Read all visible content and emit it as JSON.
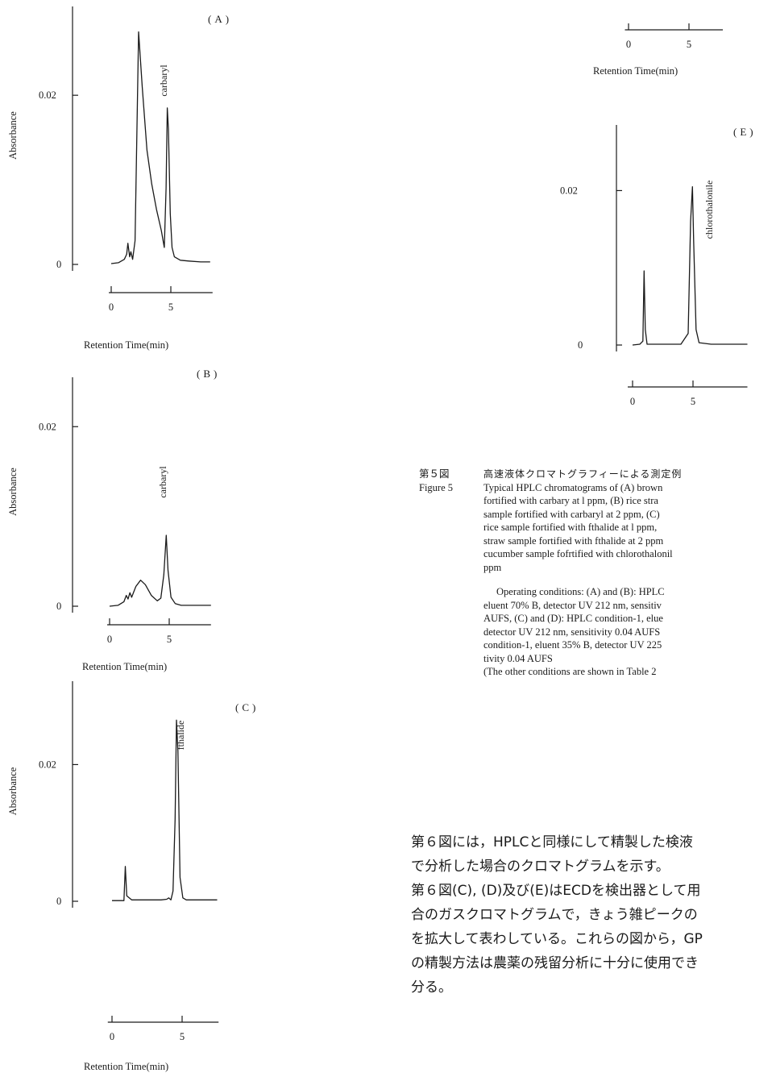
{
  "chart_data": [
    {
      "type": "line",
      "panel_label": "(A)",
      "ylabel": "Absorbance",
      "xlabel": "Retention  Time(min)",
      "yticks": [
        "0",
        "0.02"
      ],
      "xticks": [
        "0",
        "5"
      ],
      "peak_label": "carbaryl",
      "x": [
        0,
        0.6,
        1.1,
        1.3,
        1.4,
        1.55,
        1.65,
        1.8,
        2.0,
        2.3,
        2.6,
        3.0,
        3.4,
        3.8,
        4.2,
        4.45,
        4.6,
        4.7,
        4.8,
        4.95,
        5.1,
        5.3,
        5.8,
        6.5,
        7.5,
        8.3
      ],
      "y": [
        0.0001,
        0.0002,
        0.0006,
        0.0012,
        0.0025,
        0.0009,
        0.0015,
        0.0006,
        0.0028,
        0.0275,
        0.021,
        0.0135,
        0.0095,
        0.0065,
        0.004,
        0.002,
        0.009,
        0.0185,
        0.016,
        0.006,
        0.002,
        0.0009,
        0.0005,
        0.0004,
        0.0003,
        0.0003
      ],
      "ylim": [
        0,
        0.0305
      ],
      "xlim": [
        -0.2,
        8.5
      ]
    },
    {
      "type": "line",
      "panel_label": "(B)",
      "ylabel": "Absorbance",
      "xlabel": "Retention  Time(min)",
      "yticks": [
        "0",
        "0.02"
      ],
      "xticks": [
        "0",
        "5"
      ],
      "peak_label": "carbaryl",
      "x": [
        0,
        0.7,
        1.2,
        1.4,
        1.55,
        1.7,
        1.85,
        2.2,
        2.6,
        3.0,
        3.5,
        4.0,
        4.3,
        4.55,
        4.75,
        4.9,
        5.15,
        5.5,
        6.0,
        7.0,
        8.5
      ],
      "y": [
        0,
        0.0001,
        0.0005,
        0.0012,
        0.0008,
        0.0015,
        0.001,
        0.0022,
        0.0029,
        0.0024,
        0.0012,
        0.0006,
        0.0009,
        0.0035,
        0.0079,
        0.004,
        0.001,
        0.0003,
        0.0001,
        0.0001,
        0.0001
      ],
      "ylim": [
        0,
        0.0255
      ],
      "xlim": [
        -0.2,
        8.5
      ]
    },
    {
      "type": "line",
      "panel_label": "(C)",
      "ylabel": "Absorbance",
      "xlabel": "Retention  Time(min)",
      "yticks": [
        "0",
        "0.02"
      ],
      "xticks": [
        "0",
        "5"
      ],
      "peak_label": "fthalide",
      "x": [
        0,
        0.6,
        0.85,
        0.95,
        1.05,
        1.4,
        2.5,
        3.5,
        3.9,
        4.05,
        4.2,
        4.35,
        4.5,
        4.6,
        4.7,
        4.85,
        5.05,
        5.3,
        6.0,
        7.5
      ],
      "y": [
        0.0001,
        0.0001,
        0.0001,
        0.0051,
        0.0008,
        0.0002,
        0.0002,
        0.0002,
        0.0003,
        0.0005,
        0.0002,
        0.0015,
        0.012,
        0.0265,
        0.022,
        0.0035,
        0.0005,
        0.0002,
        0.0002,
        0.0002
      ],
      "ylim": [
        0,
        0.0322
      ],
      "xlim": [
        -0.3,
        7.6
      ]
    },
    {
      "type": "line",
      "panel_label": "(E)",
      "ylabel": "",
      "xlabel": "",
      "yticks": [
        "0",
        "0.02"
      ],
      "xticks": [
        "0",
        "5"
      ],
      "peak_label": "chlorothalonile",
      "x": [
        0,
        0.6,
        0.85,
        0.95,
        1.05,
        1.2,
        2.5,
        4.0,
        4.6,
        4.8,
        4.95,
        5.05,
        5.25,
        5.5,
        6.5,
        8.0,
        9.5
      ],
      "y": [
        0,
        0.0001,
        0.0005,
        0.0096,
        0.002,
        0.0001,
        0.0001,
        0.0001,
        0.0015,
        0.016,
        0.0205,
        0.0135,
        0.002,
        0.0003,
        0.0001,
        0.0001,
        0.0001
      ],
      "ylim": [
        0,
        0.0285
      ],
      "xlim": [
        -0.4,
        9.5
      ]
    },
    {
      "type": "line",
      "panel_label": "",
      "ylabel": "",
      "xlabel": "Retention  Time(min)",
      "yticks": [],
      "xticks": [
        "0",
        "5"
      ],
      "peak_label": "",
      "x": [],
      "y": [],
      "xlim": [
        -0.3,
        7.8
      ]
    }
  ],
  "caption": {
    "label_ja": "第５図",
    "title_ja": "高速液体クロマトグラフィーによる測定例",
    "label_en": "Figure 5",
    "lines": [
      "Typical HPLC chromatograms of (A) brown",
      "fortified with carbary at l ppm, (B) rice stra",
      "sample fortified with carbaryl at 2 ppm, (C)",
      "rice sample fortified with fthalide at l ppm,",
      "straw sample fortified with fthalide at 2 ppm",
      "cucumber sample fofrtified with chlorothalonil",
      "ppm"
    ],
    "operating": [
      "Operating conditions: (A) and (B): HPLC",
      "eluent 70% B, detector UV 212 nm, sensitiv",
      "AUFS, (C) and (D): HPLC condition-1, elue",
      "detector UV 212 nm, sensitivity 0.04 AUFS",
      "condition-1, eluent 35% B, detector UV 225",
      "tivity 0.04 AUFS",
      "(The other conditions are shown in Table 2"
    ]
  },
  "body_text": [
    "第６図には，HPLCと同様にして精製した検液",
    "で分析した場合のクロマトグラムを示す。",
    "第６図(C), (D)及び(E)はECDを検出器として用",
    "合のガスクロマトグラムで，きょう雑ピークの",
    "を拡大して表わしている。これらの図から，GP",
    "の精製方法は農薬の残留分析に十分に使用でき",
    "分る。"
  ]
}
